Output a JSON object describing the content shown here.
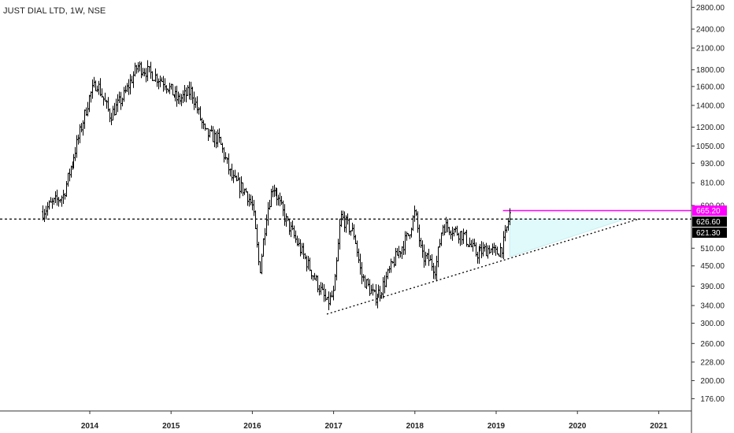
{
  "header": {
    "title": "JUST DIAL LTD, 1W, NSE"
  },
  "colors": {
    "candle": "#000000",
    "resistance_line": "#ff00ff",
    "triangle_fill": "#e0fafb",
    "tag_dark": "#000000",
    "tag_magenta": "#ff00ff"
  },
  "chart_data": {
    "type": "candlestick",
    "title": "JUST DIAL LTD, 1W, NSE",
    "scale": "log",
    "ylim": [
      165,
      2900
    ],
    "y_ticks": [
      "2800.00",
      "2400.00",
      "2100.00",
      "1800.00",
      "1600.00",
      "1400.00",
      "1200.00",
      "1050.00",
      "930.00",
      "810.00",
      "690.00",
      "510.00",
      "450.00",
      "390.00",
      "340.00",
      "300.00",
      "260.00",
      "228.00",
      "200.00",
      "176.00"
    ],
    "x_ticks": [
      "2014",
      "2015",
      "2016",
      "2017",
      "2018",
      "2019",
      "2020",
      "2021"
    ],
    "price_tags": [
      {
        "label": "665.20",
        "value": 665.2,
        "style": "magenta"
      },
      {
        "label": "626.60",
        "value": 626.6,
        "style": "dark"
      },
      {
        "label": "621.30",
        "value": 621.3,
        "style": "dark"
      }
    ],
    "series": [
      {
        "type": "weekly-close",
        "x": [
          "2013-06",
          "2013-07",
          "2013-09",
          "2013-11",
          "2014-01",
          "2014-02",
          "2014-04",
          "2014-06",
          "2014-08",
          "2014-10",
          "2014-12",
          "2015-02",
          "2015-04",
          "2015-06",
          "2015-08",
          "2015-10",
          "2015-12",
          "2016-01",
          "2016-02",
          "2016-03",
          "2016-04",
          "2016-05",
          "2016-06",
          "2016-08",
          "2016-10",
          "2016-12",
          "2017-01",
          "2017-02",
          "2017-04",
          "2017-05",
          "2017-07",
          "2017-08",
          "2017-10",
          "2017-12",
          "2018-01",
          "2018-02",
          "2018-03",
          "2018-04",
          "2018-05",
          "2018-06",
          "2018-08",
          "2018-10",
          "2018-12",
          "2019-01",
          "2019-02",
          "2019-03"
        ],
        "y": [
          660,
          690,
          740,
          1050,
          1500,
          1650,
          1300,
          1500,
          1850,
          1750,
          1650,
          1450,
          1550,
          1150,
          1100,
          830,
          760,
          680,
          430,
          650,
          800,
          700,
          620,
          510,
          420,
          345,
          370,
          640,
          560,
          420,
          360,
          380,
          470,
          560,
          660,
          480,
          470,
          440,
          600,
          590,
          560,
          490,
          510,
          490,
          520,
          650
        ]
      }
    ],
    "horizontal_lines": [
      {
        "value": 665.2,
        "style": "solid",
        "color": "magenta",
        "from": "2019-02",
        "to": "2021-06"
      },
      {
        "value": 626.6,
        "style": "dotted",
        "color": "black"
      }
    ],
    "trendline": {
      "style": "dotted",
      "from": {
        "x": "2016-12",
        "y": 320
      },
      "to": {
        "x": "2020-10",
        "y": 626.6
      }
    },
    "projection_triangle": {
      "vertices": [
        {
          "x": "2019-03",
          "y": 626.6
        },
        {
          "x": "2019-03",
          "y": 480
        },
        {
          "x": "2020-08",
          "y": 626.6
        }
      ]
    },
    "grid": false,
    "legend": "none"
  }
}
